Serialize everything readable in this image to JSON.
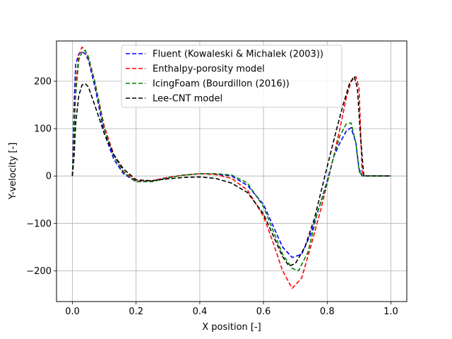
{
  "chart_data": {
    "type": "line",
    "title": "",
    "xlabel": "X position [-]",
    "ylabel": "Y-velocity [-]",
    "xlim": [
      -0.05,
      1.05
    ],
    "ylim": [
      -265,
      285
    ],
    "xticks": [
      0.0,
      0.2,
      0.4,
      0.6,
      0.8,
      1.0
    ],
    "xtick_labels": [
      "0.0",
      "0.2",
      "0.4",
      "0.6",
      "0.8",
      "1.0"
    ],
    "yticks": [
      -200,
      -100,
      0,
      100,
      200
    ],
    "ytick_labels": [
      "−200",
      "−100",
      "0",
      "100",
      "200"
    ],
    "grid": true,
    "legend_position": "top-center",
    "series": [
      {
        "name": "Fluent (Kowaleski & Michalek (2003))",
        "color": "#0000ff",
        "x": [
          0,
          0.005,
          0.01,
          0.02,
          0.03,
          0.04,
          0.05,
          0.07,
          0.1,
          0.13,
          0.16,
          0.2,
          0.25,
          0.3,
          0.35,
          0.4,
          0.45,
          0.5,
          0.55,
          0.6,
          0.63,
          0.66,
          0.69,
          0.72,
          0.75,
          0.78,
          0.8,
          0.82,
          0.84,
          0.86,
          0.875,
          0.89,
          0.9,
          0.91,
          0.95,
          1.0
        ],
        "y": [
          0,
          150,
          235,
          258,
          262,
          258,
          245,
          190,
          90,
          35,
          5,
          -12,
          -10,
          -3,
          2,
          5,
          4,
          0,
          -20,
          -60,
          -105,
          -150,
          -172,
          -165,
          -120,
          -55,
          -10,
          40,
          70,
          95,
          102,
          70,
          15,
          0,
          0,
          0
        ]
      },
      {
        "name": "Enthalpy-porosity model",
        "color": "#ff0000",
        "x": [
          0,
          0.005,
          0.01,
          0.02,
          0.03,
          0.04,
          0.05,
          0.07,
          0.1,
          0.13,
          0.16,
          0.2,
          0.25,
          0.3,
          0.35,
          0.4,
          0.45,
          0.5,
          0.55,
          0.6,
          0.63,
          0.66,
          0.69,
          0.72,
          0.75,
          0.78,
          0.8,
          0.82,
          0.84,
          0.86,
          0.875,
          0.89,
          0.9,
          0.91,
          0.95,
          1.0
        ],
        "y": [
          0,
          90,
          190,
          255,
          272,
          265,
          250,
          200,
          105,
          45,
          10,
          -10,
          -10,
          -3,
          2,
          5,
          3,
          -5,
          -30,
          -85,
          -140,
          -200,
          -237,
          -215,
          -145,
          -70,
          -15,
          40,
          100,
          165,
          200,
          210,
          185,
          0,
          0,
          0
        ]
      },
      {
        "name": "IcingFoam (Bourdillon (2016))",
        "color": "#008000",
        "x": [
          0,
          0.005,
          0.01,
          0.02,
          0.03,
          0.04,
          0.05,
          0.07,
          0.1,
          0.13,
          0.16,
          0.2,
          0.25,
          0.3,
          0.35,
          0.4,
          0.45,
          0.5,
          0.55,
          0.6,
          0.63,
          0.66,
          0.69,
          0.71,
          0.74,
          0.77,
          0.8,
          0.82,
          0.84,
          0.86,
          0.875,
          0.89,
          0.9,
          0.91,
          0.95,
          1.0
        ],
        "y": [
          0,
          80,
          170,
          245,
          262,
          265,
          252,
          200,
          100,
          42,
          8,
          -12,
          -12,
          -4,
          2,
          5,
          5,
          2,
          -15,
          -65,
          -115,
          -165,
          -195,
          -200,
          -160,
          -75,
          -15,
          40,
          85,
          110,
          112,
          70,
          10,
          0,
          0,
          0
        ]
      },
      {
        "name": "Lee-CNT model",
        "color": "#000000",
        "x": [
          0,
          0.005,
          0.01,
          0.02,
          0.03,
          0.04,
          0.05,
          0.07,
          0.1,
          0.13,
          0.16,
          0.2,
          0.25,
          0.3,
          0.35,
          0.4,
          0.45,
          0.5,
          0.55,
          0.6,
          0.63,
          0.66,
          0.68,
          0.7,
          0.73,
          0.76,
          0.8,
          0.83,
          0.85,
          0.87,
          0.885,
          0.895,
          0.905,
          0.915,
          0.95,
          1.0
        ],
        "y": [
          0,
          40,
          110,
          170,
          192,
          195,
          188,
          150,
          90,
          45,
          15,
          -8,
          -10,
          -6,
          -3,
          -2,
          -5,
          -15,
          -35,
          -80,
          -125,
          -170,
          -190,
          -185,
          -150,
          -90,
          20,
          100,
          150,
          195,
          210,
          185,
          80,
          0,
          0,
          0
        ]
      }
    ]
  }
}
